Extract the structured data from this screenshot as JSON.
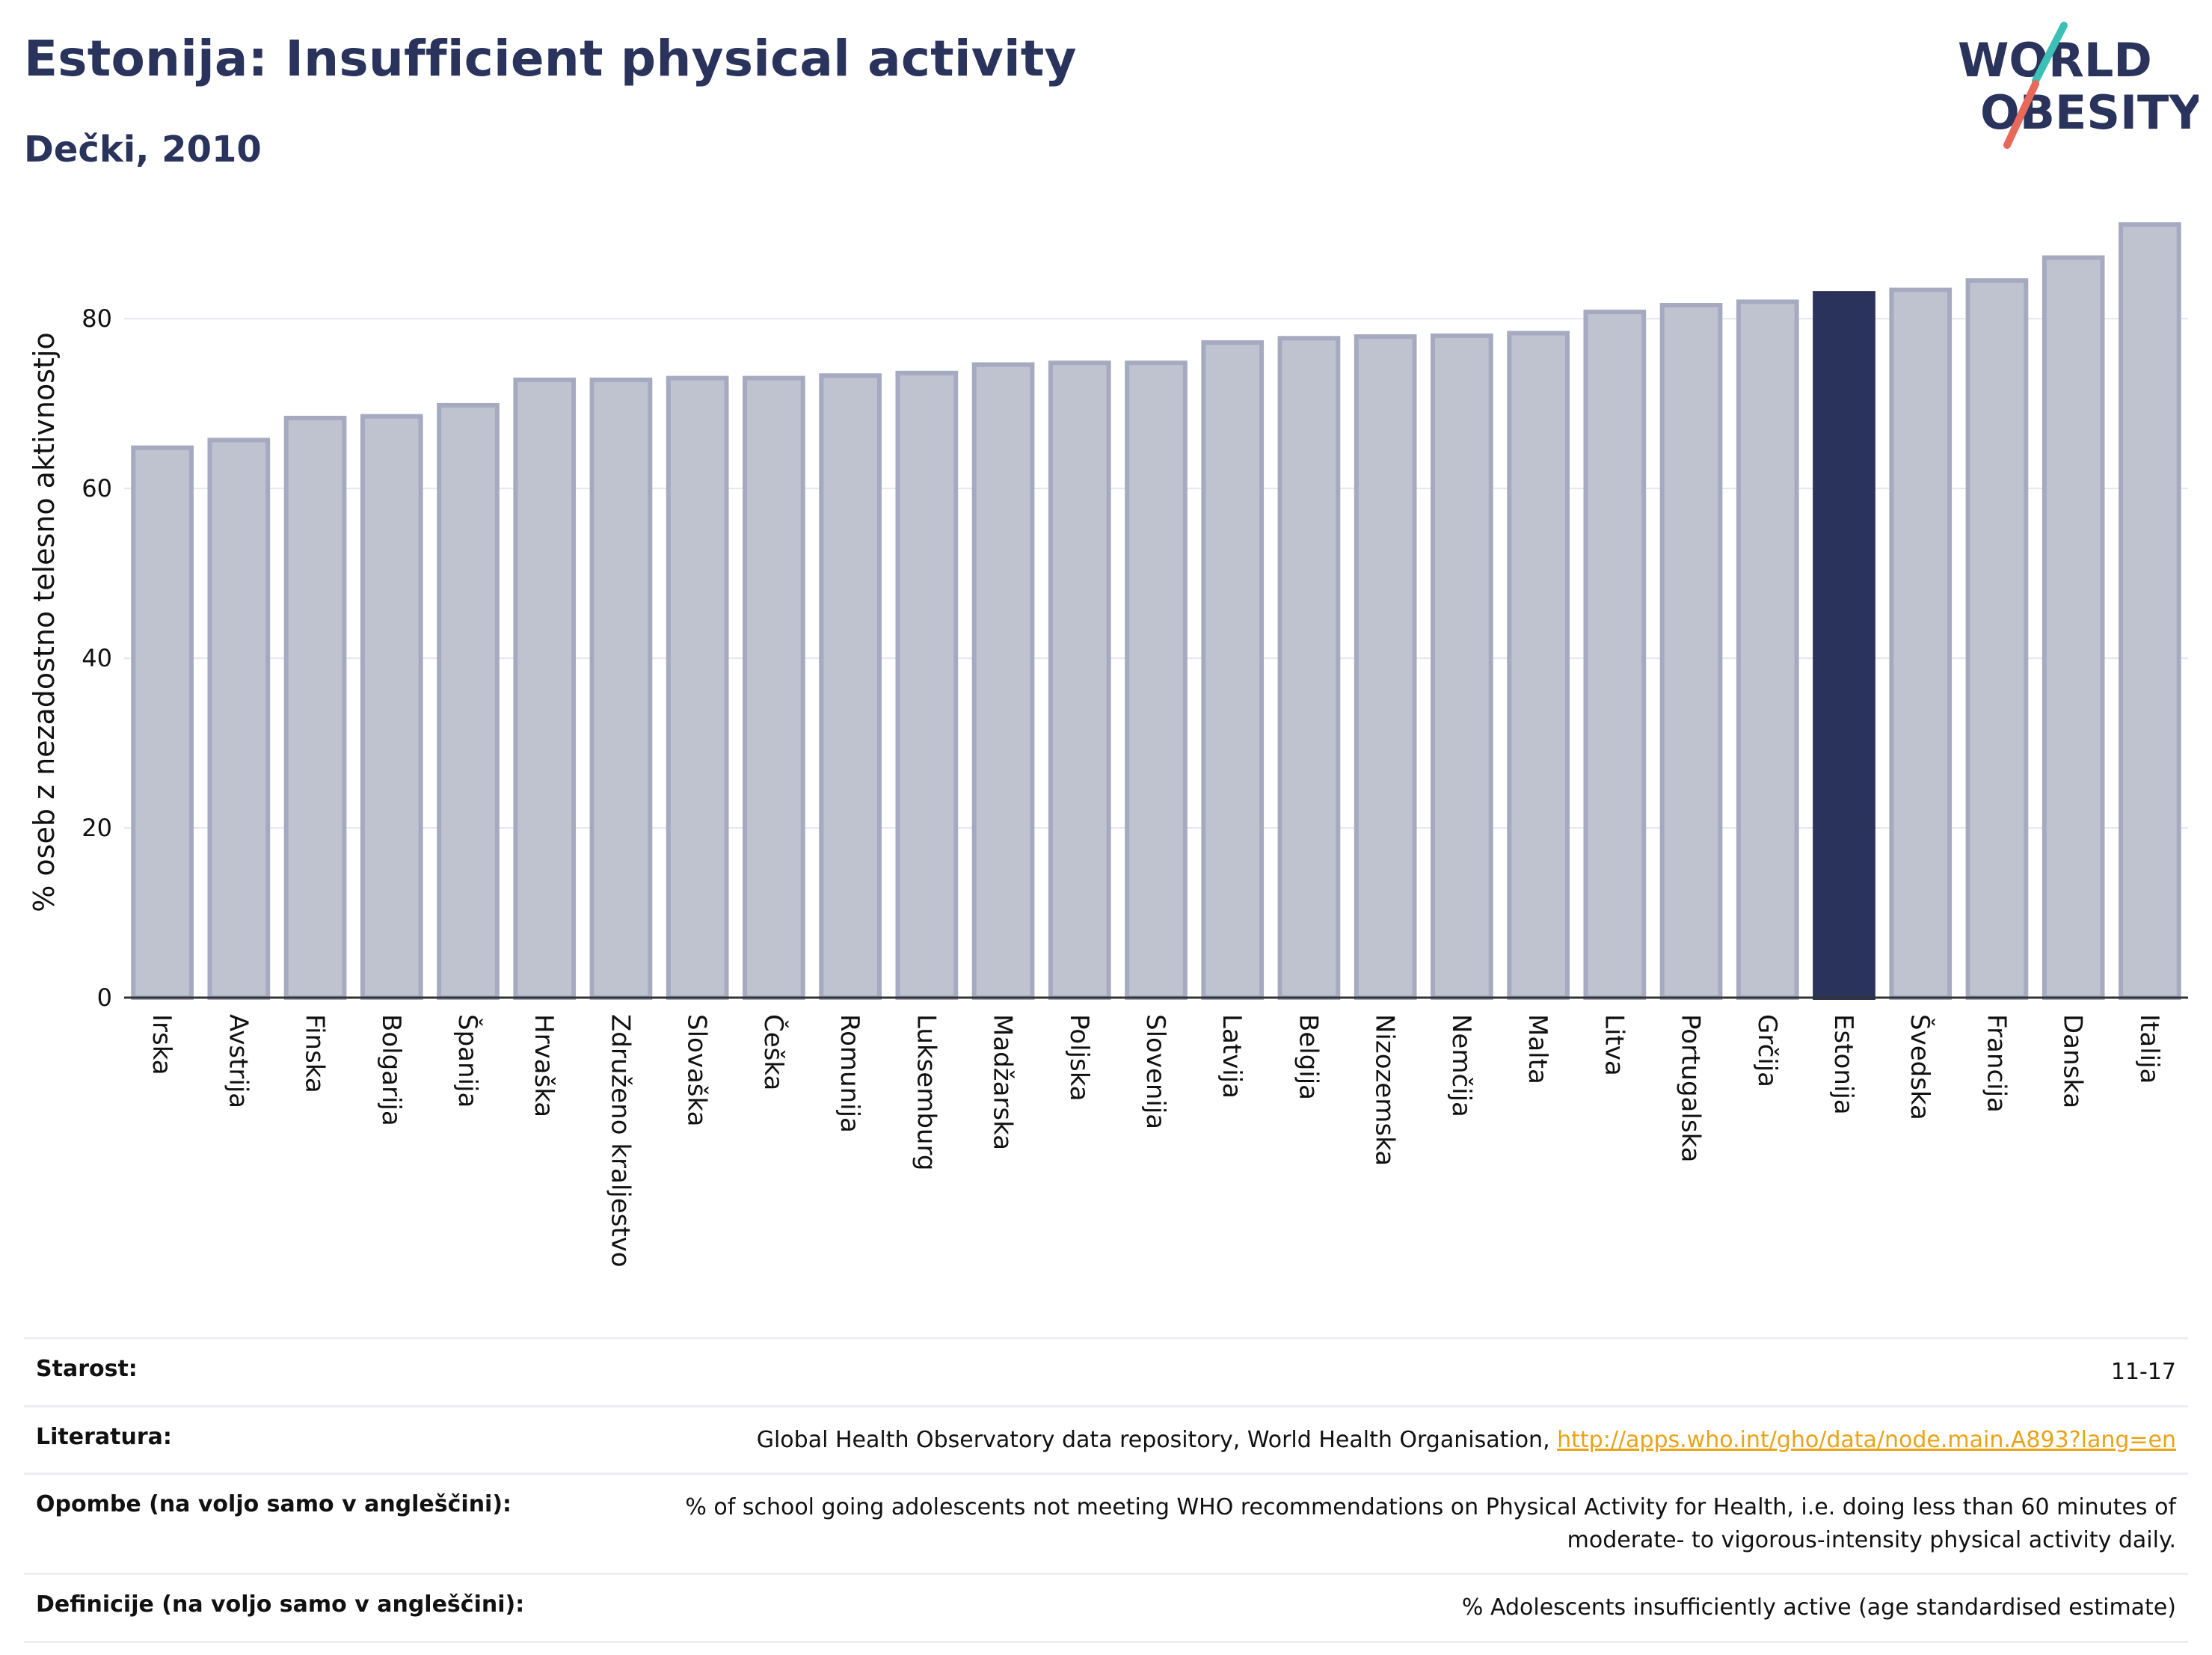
{
  "header": {
    "title": "Estonija: Insufficient physical activity",
    "subtitle": "Dečki, 2010",
    "logo_line1": "WORLD",
    "logo_line2": "OBESITY"
  },
  "colors": {
    "bar": "#bfc2cf",
    "bar_border": "#a5aac0",
    "highlight": "#2a335c",
    "grid": "#e6e8ef",
    "axis": "#333333",
    "logo_text": "#2a335c",
    "logo_teal": "#3cbfb4",
    "logo_coral": "#e8685a",
    "link": "#e8a317"
  },
  "chart_data": {
    "type": "bar",
    "ylabel": "% oseb z nezadostno telesno aktivnostjo",
    "ylim": [
      0,
      92
    ],
    "yticks": [
      0,
      20,
      40,
      60,
      80
    ],
    "highlight": "Estonija",
    "categories": [
      "Irska",
      "Avstrija",
      "Finska",
      "Bolgarija",
      "Španija",
      "Hrvaška",
      "Združeno kraljestvo",
      "Slovaška",
      "Češka",
      "Romunija",
      "Luksemburg",
      "Madžarska",
      "Poljska",
      "Slovenija",
      "Latvija",
      "Belgija",
      "Nizozemska",
      "Nemčija",
      "Malta",
      "Litva",
      "Portugalska",
      "Grčija",
      "Estonija",
      "Švedska",
      "Francija",
      "Danska",
      "Italija"
    ],
    "values": [
      64.8,
      65.7,
      68.3,
      68.5,
      69.8,
      72.8,
      72.8,
      73.0,
      73.0,
      73.3,
      73.6,
      74.6,
      74.8,
      74.8,
      77.2,
      77.7,
      77.9,
      78.0,
      78.3,
      80.8,
      81.6,
      82.0,
      83.0,
      83.4,
      84.5,
      87.2,
      91.1
    ]
  },
  "metadata": {
    "rows": [
      {
        "label": "Starost:",
        "value": "11-17"
      },
      {
        "label": "Literatura:",
        "value": "Global Health Observatory data repository, World Health Organisation, ",
        "link": "http://apps.who.int/gho/data/node.main.A893?lang=en"
      },
      {
        "label": "Opombe (na voljo samo v angleščini):",
        "value": "% of school going adolescents not meeting WHO recommendations on Physical Activity for Health, i.e. doing less than 60 minutes of moderate- to vigorous-intensity physical activity daily."
      },
      {
        "label": "Definicije (na voljo samo v angleščini):",
        "value": "% Adolescents insufficiently active (age standardised estimate)"
      }
    ]
  }
}
